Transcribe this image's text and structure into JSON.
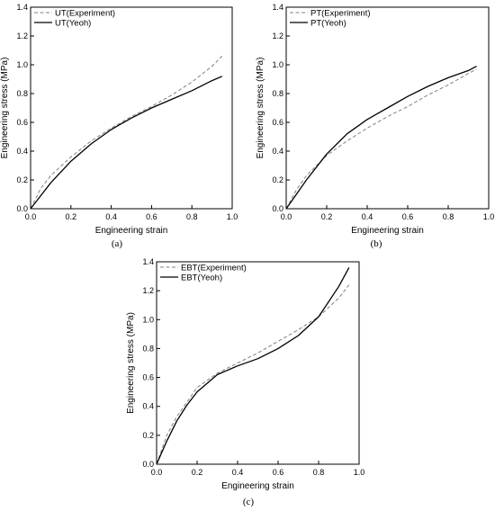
{
  "chart_data": [
    {
      "type": "line",
      "panel_label": "(a)",
      "xlabel": "Engineering strain",
      "ylabel": "Engineering stress (MPa)",
      "xlim": [
        0,
        1.0
      ],
      "ylim": [
        0,
        1.4
      ],
      "xticks": [
        "0.0",
        "0.2",
        "0.4",
        "0.6",
        "0.8",
        "1.0"
      ],
      "yticks": [
        "0.0",
        "0.2",
        "0.4",
        "0.6",
        "0.8",
        "1.0",
        "1.2",
        "1.4"
      ],
      "legend_position": "top-left",
      "grid": false,
      "series": [
        {
          "name": "UT(Experiment)",
          "style": "dashed",
          "color": "#808080",
          "x": [
            0,
            0.05,
            0.1,
            0.2,
            0.3,
            0.4,
            0.5,
            0.6,
            0.7,
            0.8,
            0.9,
            0.95
          ],
          "y": [
            0,
            0.14,
            0.23,
            0.36,
            0.47,
            0.56,
            0.64,
            0.71,
            0.79,
            0.88,
            0.99,
            1.06
          ]
        },
        {
          "name": "UT(Yeoh)",
          "style": "solid",
          "color": "#000000",
          "x": [
            0,
            0.05,
            0.1,
            0.2,
            0.3,
            0.4,
            0.5,
            0.6,
            0.7,
            0.8,
            0.9,
            0.95
          ],
          "y": [
            0,
            0.09,
            0.18,
            0.33,
            0.45,
            0.55,
            0.63,
            0.7,
            0.76,
            0.82,
            0.89,
            0.92
          ]
        }
      ]
    },
    {
      "type": "line",
      "panel_label": "(b)",
      "xlabel": "Engineering strain",
      "ylabel": "Engineering stress (MPa)",
      "xlim": [
        0,
        1.0
      ],
      "ylim": [
        0,
        1.4
      ],
      "xticks": [
        "0.0",
        "0.2",
        "0.4",
        "0.6",
        "0.8",
        "1.0"
      ],
      "yticks": [
        "0.0",
        "0.2",
        "0.4",
        "0.6",
        "0.8",
        "1.0",
        "1.2",
        "1.4"
      ],
      "legend_position": "top-left",
      "grid": false,
      "series": [
        {
          "name": "PT(Experiment)",
          "style": "dashed",
          "color": "#808080",
          "x": [
            0,
            0.05,
            0.1,
            0.2,
            0.3,
            0.4,
            0.5,
            0.6,
            0.7,
            0.8,
            0.9,
            0.94
          ],
          "y": [
            0,
            0.13,
            0.23,
            0.37,
            0.47,
            0.56,
            0.64,
            0.71,
            0.79,
            0.86,
            0.94,
            0.97
          ]
        },
        {
          "name": "PT(Yeoh)",
          "style": "solid",
          "color": "#000000",
          "x": [
            0,
            0.05,
            0.1,
            0.2,
            0.3,
            0.4,
            0.5,
            0.6,
            0.7,
            0.8,
            0.9,
            0.94
          ],
          "y": [
            0,
            0.1,
            0.2,
            0.38,
            0.52,
            0.62,
            0.7,
            0.78,
            0.85,
            0.91,
            0.96,
            0.99
          ]
        }
      ]
    },
    {
      "type": "line",
      "panel_label": "(c)",
      "xlabel": "Engineering strain",
      "ylabel": "Engineering stress (MPa)",
      "xlim": [
        0,
        1.0
      ],
      "ylim": [
        0,
        1.4
      ],
      "xticks": [
        "0.0",
        "0.2",
        "0.4",
        "0.6",
        "0.8",
        "1.0"
      ],
      "yticks": [
        "0.0",
        "0.2",
        "0.4",
        "0.6",
        "0.8",
        "1.0",
        "1.2",
        "1.4"
      ],
      "legend_position": "top-left",
      "grid": false,
      "series": [
        {
          "name": "EBT(Experiment)",
          "style": "dashed",
          "color": "#808080",
          "x": [
            0,
            0.05,
            0.1,
            0.2,
            0.3,
            0.4,
            0.5,
            0.6,
            0.7,
            0.8,
            0.9,
            0.95
          ],
          "y": [
            0,
            0.2,
            0.33,
            0.53,
            0.63,
            0.7,
            0.77,
            0.85,
            0.93,
            1.02,
            1.15,
            1.24
          ]
        },
        {
          "name": "EBT(Yeoh)",
          "style": "solid",
          "color": "#000000",
          "x": [
            0,
            0.05,
            0.1,
            0.15,
            0.2,
            0.3,
            0.4,
            0.5,
            0.6,
            0.7,
            0.8,
            0.9,
            0.95
          ],
          "y": [
            0,
            0.16,
            0.3,
            0.41,
            0.5,
            0.62,
            0.68,
            0.73,
            0.8,
            0.89,
            1.02,
            1.23,
            1.36
          ]
        }
      ]
    }
  ]
}
